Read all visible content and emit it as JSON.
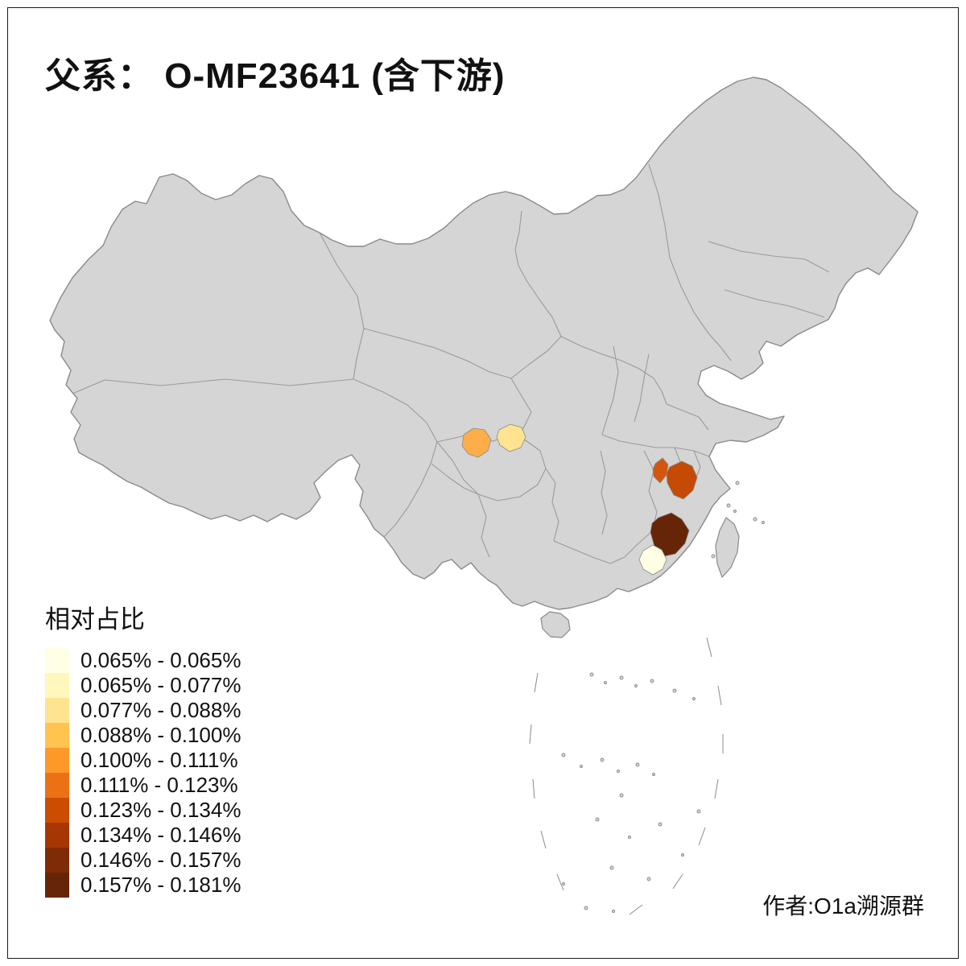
{
  "title": "父系： O-MF23641 (含下游)",
  "attribution": "作者:O1a溯源群",
  "legend": {
    "title": "相对占比",
    "entries": [
      {
        "label": "0.065% - 0.065%",
        "color": "#FFFFE5"
      },
      {
        "label": "0.065% - 0.077%",
        "color": "#FFF7BC"
      },
      {
        "label": "0.077% - 0.088%",
        "color": "#FEE391"
      },
      {
        "label": "0.088% - 0.100%",
        "color": "#FEC44F"
      },
      {
        "label": "0.100% - 0.111%",
        "color": "#FE9929"
      },
      {
        "label": "0.111% - 0.123%",
        "color": "#EC7014"
      },
      {
        "label": "0.123% - 0.134%",
        "color": "#CC4C02"
      },
      {
        "label": "0.134% - 0.146%",
        "color": "#A63603"
      },
      {
        "label": "0.146% - 0.157%",
        "color": "#7F2B05"
      },
      {
        "label": "0.157% - 0.181%",
        "color": "#662506"
      }
    ]
  },
  "map": {
    "land_fill": "#D5D5D5",
    "border_color": "#8A8A8A",
    "internal_border_color": "#9B9B9B",
    "highlights": [
      {
        "name": "region-sichuan-west",
        "color": "#FDAE49"
      },
      {
        "name": "region-sichuan-east",
        "color": "#FEE391"
      },
      {
        "name": "region-zhejiang-small",
        "color": "#D2560E"
      },
      {
        "name": "region-zhejiang-large",
        "color": "#C54B04"
      },
      {
        "name": "region-fujian-central",
        "color": "#662506"
      },
      {
        "name": "region-fujian-south",
        "color": "#FFFFE5"
      }
    ]
  }
}
